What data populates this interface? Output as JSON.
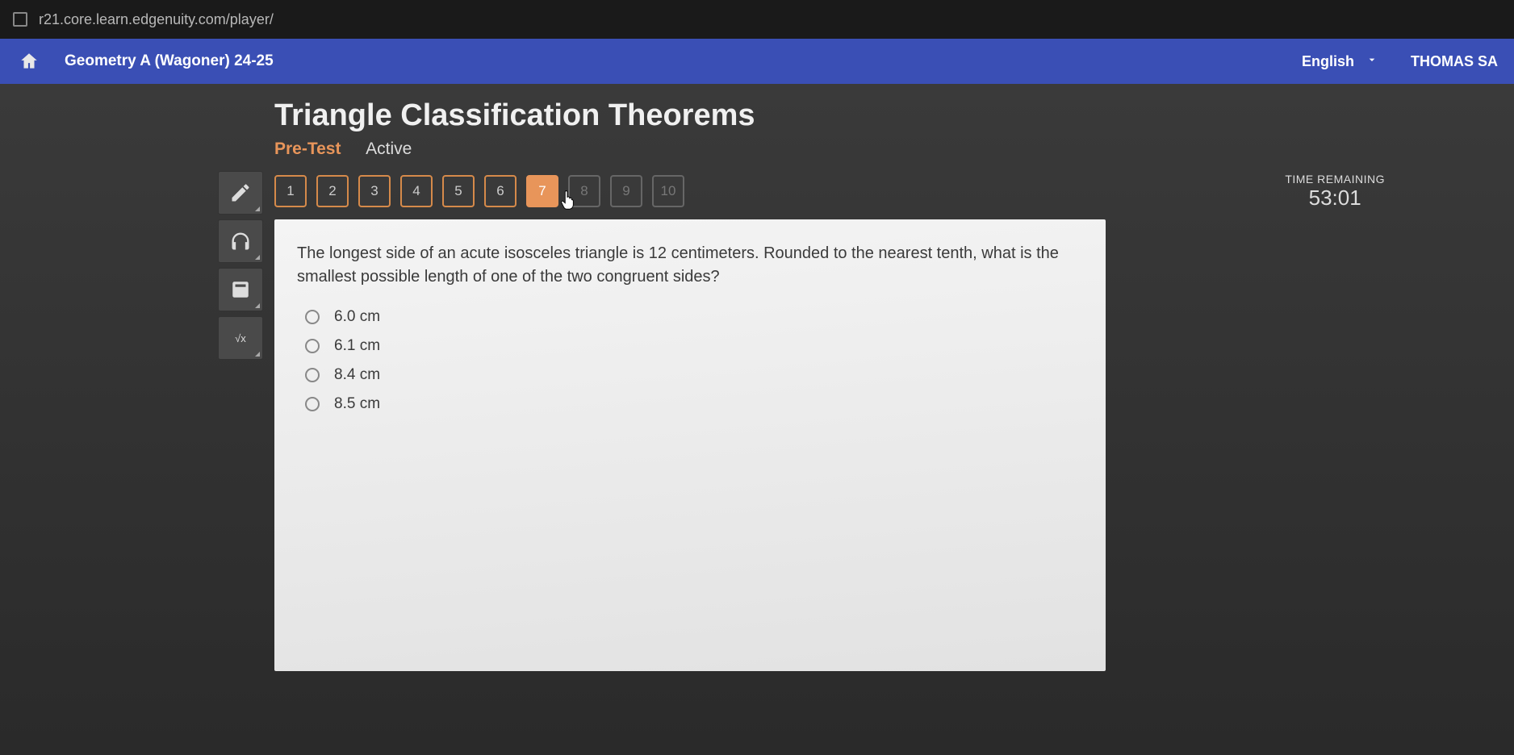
{
  "browser": {
    "url": "r21.core.learn.edgenuity.com/player/"
  },
  "header": {
    "course_title": "Geometry A (Wagoner) 24-25",
    "language": "English",
    "user_name": "THOMAS SA"
  },
  "lesson": {
    "title": "Triangle Classification Theorems",
    "stage_label": "Pre-Test",
    "status_label": "Active"
  },
  "timer": {
    "label": "TIME REMAINING",
    "value": "53:01"
  },
  "question_nav": {
    "items": [
      {
        "n": "1",
        "state": "answered"
      },
      {
        "n": "2",
        "state": "answered"
      },
      {
        "n": "3",
        "state": "answered"
      },
      {
        "n": "4",
        "state": "answered"
      },
      {
        "n": "5",
        "state": "answered"
      },
      {
        "n": "6",
        "state": "answered"
      },
      {
        "n": "7",
        "state": "current"
      },
      {
        "n": "8",
        "state": "locked"
      },
      {
        "n": "9",
        "state": "locked"
      },
      {
        "n": "10",
        "state": "locked"
      }
    ]
  },
  "question": {
    "prompt": "The longest side of an acute isosceles triangle is 12 centimeters. Rounded to the nearest tenth, what is the smallest possible length of one of the two congruent sides?",
    "options": [
      {
        "label": "6.0 cm"
      },
      {
        "label": "6.1 cm"
      },
      {
        "label": "8.4 cm"
      },
      {
        "label": "8.5 cm"
      }
    ]
  },
  "tools": {
    "pencil": "pencil-icon",
    "headphones": "headphones-icon",
    "calculator": "calculator-icon",
    "formula": "√x"
  },
  "colors": {
    "course_bar": "#3a4fb5",
    "accent_orange": "#e8955a",
    "card_bg": "#ededed",
    "page_bg_top": "#3a3a3a",
    "page_bg_bottom": "#2a2a2a",
    "locked_border": "#666666"
  }
}
